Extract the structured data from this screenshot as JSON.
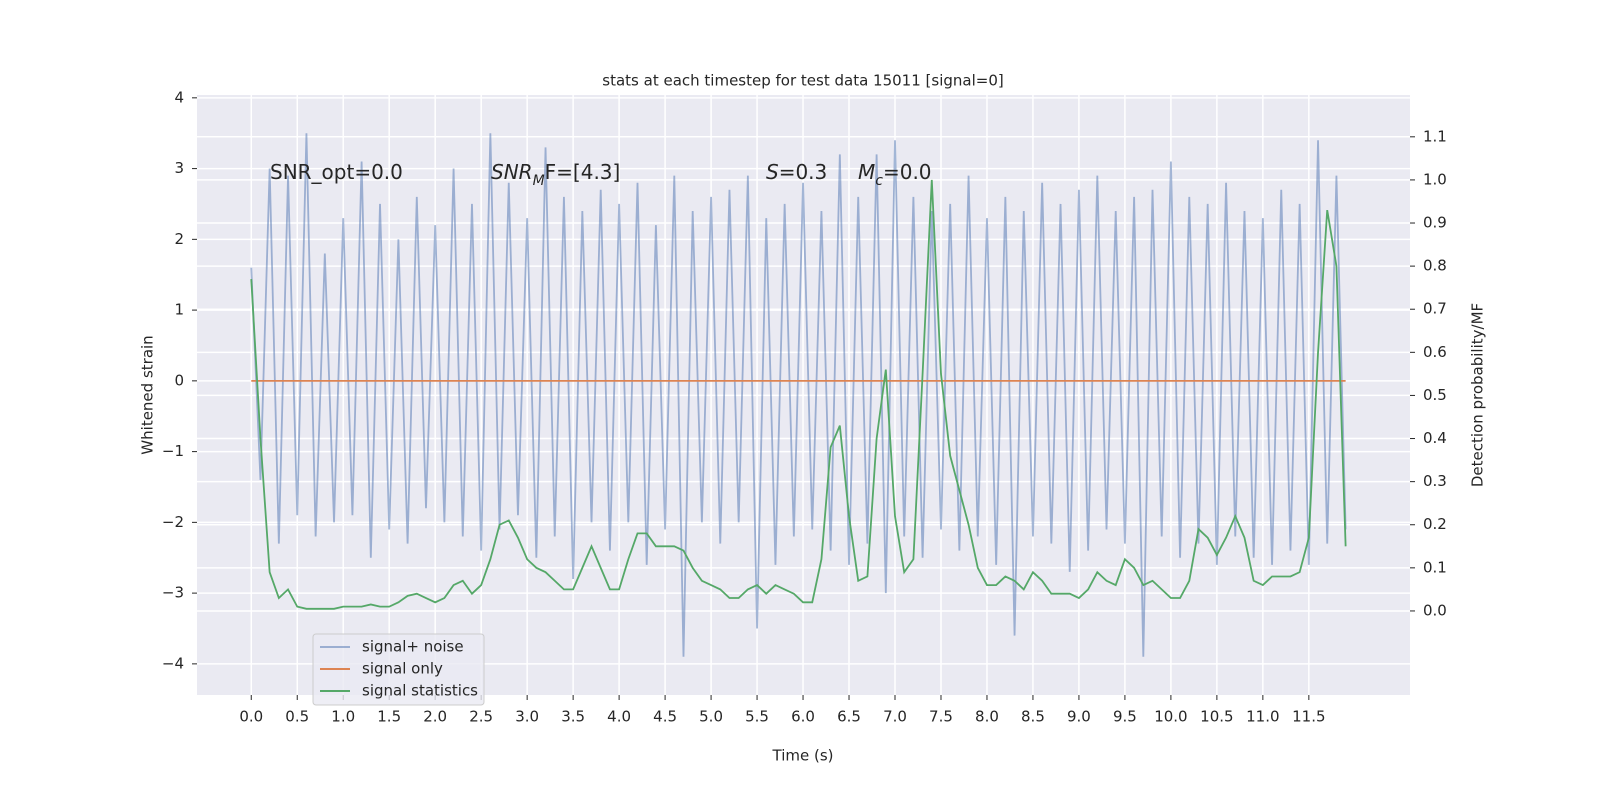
{
  "chart_data": {
    "type": "line",
    "title": "stats at each timestep for test data 15011 [signal=0]",
    "xlabel": "Time (s)",
    "ylabel": "Whitened strain",
    "y2label": "Detection probability/MF",
    "x": [
      0,
      0.1,
      0.2,
      0.3,
      0.4,
      0.5,
      0.6,
      0.7,
      0.8,
      0.9,
      1,
      1.1,
      1.2,
      1.3,
      1.4,
      1.5,
      1.6,
      1.7,
      1.8,
      1.9,
      2,
      2.1,
      2.2,
      2.3,
      2.4,
      2.5,
      2.6,
      2.7,
      2.8,
      2.9,
      3,
      3.1,
      3.2,
      3.3,
      3.4,
      3.5,
      3.6,
      3.7,
      3.8,
      3.9,
      4,
      4.1,
      4.2,
      4.3,
      4.4,
      4.5,
      4.6,
      4.7,
      4.8,
      4.9,
      5,
      5.1,
      5.2,
      5.3,
      5.4,
      5.5,
      5.6,
      5.7,
      5.8,
      5.9,
      6,
      6.1,
      6.2,
      6.3,
      6.4,
      6.5,
      6.6,
      6.7,
      6.8,
      6.9,
      7,
      7.1,
      7.2,
      7.3,
      7.4,
      7.5,
      7.6,
      7.7,
      7.8,
      7.9,
      8,
      8.1,
      8.2,
      8.3,
      8.4,
      8.5,
      8.6,
      8.7,
      8.8,
      8.9,
      9,
      9.1,
      9.2,
      9.3,
      9.4,
      9.5,
      9.6,
      9.7,
      9.8,
      9.9,
      10,
      10.1,
      10.2,
      10.3,
      10.4,
      10.5,
      10.6,
      10.7,
      10.8,
      10.9,
      11,
      11.1,
      11.2,
      11.3,
      11.4,
      11.5,
      11.6,
      11.7,
      11.8,
      11.9
    ],
    "series": [
      {
        "name": "signal+ noise",
        "color": "#4c72b0",
        "alpha": 0.5,
        "values": [
          1.6,
          -1.4,
          3.0,
          -2.3,
          2.9,
          -1.9,
          3.5,
          -2.2,
          1.8,
          -2.0,
          2.3,
          -1.9,
          3.1,
          -2.5,
          2.5,
          -2.1,
          2.0,
          -2.3,
          2.6,
          -1.8,
          2.2,
          -2.0,
          3.0,
          -2.2,
          2.5,
          -2.4,
          3.5,
          -2.1,
          2.8,
          -1.9,
          2.3,
          -2.5,
          3.3,
          -2.2,
          2.6,
          -2.8,
          2.4,
          -2.0,
          2.7,
          -2.4,
          2.5,
          -2.0,
          2.8,
          -2.6,
          2.2,
          -2.1,
          2.9,
          -3.9,
          2.4,
          -2.0,
          2.6,
          -2.3,
          2.7,
          -2.0,
          2.9,
          -3.5,
          2.3,
          -2.6,
          2.5,
          -2.2,
          2.8,
          -2.1,
          2.4,
          -2.4,
          3.2,
          -2.6,
          2.6,
          -2.3,
          3.2,
          -3.0,
          3.4,
          -2.2,
          2.6,
          -2.5,
          2.4,
          -2.1,
          2.5,
          -2.4,
          2.9,
          -2.2,
          2.3,
          -2.6,
          2.6,
          -3.6,
          2.4,
          -2.2,
          2.8,
          -2.3,
          2.5,
          -2.7,
          2.7,
          -2.4,
          2.9,
          -2.1,
          2.4,
          -2.3,
          2.6,
          -3.9,
          2.7,
          -2.2,
          3.1,
          -2.5,
          2.6,
          -2.3,
          2.5,
          -2.6,
          2.8,
          -2.2,
          2.4,
          -2.5,
          2.3,
          -2.6,
          2.7,
          -2.4,
          2.5,
          -2.6,
          3.4,
          -2.3,
          2.9,
          -2.1
        ]
      },
      {
        "name": "signal only",
        "color": "#dd8452",
        "values": [
          0,
          0,
          0,
          0,
          0,
          0,
          0,
          0,
          0,
          0,
          0,
          0,
          0,
          0,
          0,
          0,
          0,
          0,
          0,
          0,
          0,
          0,
          0,
          0,
          0,
          0,
          0,
          0,
          0,
          0,
          0,
          0,
          0,
          0,
          0,
          0,
          0,
          0,
          0,
          0,
          0,
          0,
          0,
          0,
          0,
          0,
          0,
          0,
          0,
          0,
          0,
          0,
          0,
          0,
          0,
          0,
          0,
          0,
          0,
          0,
          0,
          0,
          0,
          0,
          0,
          0,
          0,
          0,
          0,
          0,
          0,
          0,
          0,
          0,
          0,
          0,
          0,
          0,
          0,
          0,
          0,
          0,
          0,
          0,
          0,
          0,
          0,
          0,
          0,
          0,
          0,
          0,
          0,
          0,
          0,
          0,
          0,
          0,
          0,
          0,
          0,
          0,
          0,
          0,
          0,
          0,
          0,
          0,
          0,
          0,
          0,
          0,
          0,
          0,
          0,
          0,
          0,
          0,
          0,
          0
        ]
      },
      {
        "name": "signal statistics",
        "color": "#55a868",
        "axis": "y2",
        "values": [
          0.77,
          0.4,
          0.09,
          0.03,
          0.05,
          0.01,
          0.005,
          0.005,
          0.005,
          0.005,
          0.01,
          0.01,
          0.01,
          0.015,
          0.01,
          0.01,
          0.02,
          0.035,
          0.04,
          0.03,
          0.02,
          0.03,
          0.06,
          0.07,
          0.04,
          0.06,
          0.12,
          0.2,
          0.21,
          0.17,
          0.12,
          0.1,
          0.09,
          0.07,
          0.05,
          0.05,
          0.1,
          0.15,
          0.1,
          0.05,
          0.05,
          0.12,
          0.18,
          0.18,
          0.15,
          0.15,
          0.15,
          0.14,
          0.1,
          0.07,
          0.06,
          0.05,
          0.03,
          0.03,
          0.05,
          0.06,
          0.04,
          0.06,
          0.05,
          0.04,
          0.02,
          0.02,
          0.12,
          0.38,
          0.43,
          0.22,
          0.07,
          0.08,
          0.4,
          0.56,
          0.22,
          0.09,
          0.12,
          0.55,
          1.0,
          0.55,
          0.36,
          0.28,
          0.2,
          0.1,
          0.06,
          0.06,
          0.08,
          0.07,
          0.05,
          0.09,
          0.07,
          0.04,
          0.04,
          0.04,
          0.03,
          0.05,
          0.09,
          0.07,
          0.06,
          0.12,
          0.1,
          0.06,
          0.07,
          0.05,
          0.03,
          0.03,
          0.07,
          0.19,
          0.17,
          0.13,
          0.17,
          0.22,
          0.17,
          0.07,
          0.06,
          0.08,
          0.08,
          0.08,
          0.09,
          0.17,
          0.6,
          0.93,
          0.8,
          0.15
        ]
      }
    ],
    "xlim": [
      -0.59,
      12.6
    ],
    "ylim": [
      -4.44,
      4.04
    ],
    "y2lim": [
      -0.195,
      1.197
    ],
    "xticks": [
      {
        "value": 0,
        "label": "0.0"
      },
      0.5,
      {
        "value": 1,
        "label": "1.0"
      },
      1.5,
      {
        "value": 2,
        "label": "2.0"
      },
      2.5,
      {
        "value": 3,
        "label": "3.0"
      },
      3.5,
      {
        "value": 4,
        "label": "4.0"
      },
      4.5,
      {
        "value": 5,
        "label": "5.0"
      },
      5.5,
      {
        "value": 6,
        "label": "6.0"
      },
      6.5,
      {
        "value": 7,
        "label": "7.0"
      },
      7.5,
      {
        "value": 8,
        "label": "8.0"
      },
      8.5,
      {
        "value": 9,
        "label": "9.0"
      },
      9.5,
      {
        "value": 10,
        "label": "10.0"
      },
      10.5,
      {
        "value": 11,
        "label": "11.0"
      },
      11.5
    ],
    "yticks": [
      {
        "value": -4,
        "label": "−4"
      },
      {
        "value": -3,
        "label": "−3"
      },
      {
        "value": -2,
        "label": "−2"
      },
      {
        "value": -1,
        "label": "−1"
      },
      0,
      1,
      2,
      3,
      4
    ],
    "y2ticks": [
      {
        "value": 0,
        "label": "0.0"
      },
      0.1,
      0.2,
      0.3,
      0.4,
      0.5,
      0.6,
      0.7,
      0.8,
      0.9,
      {
        "value": 1,
        "label": "1.0"
      },
      1.1
    ],
    "grid": true,
    "legend": "lower left",
    "annotations": [
      [
        {
          "text": "SNR_opt=0.0"
        }
      ],
      [
        {
          "text": "SNR",
          "style": "italic"
        },
        {
          "text": "M",
          "style": "sub"
        },
        {
          "text": "F=[4.3]"
        }
      ],
      [
        {
          "text": "S",
          "style": "italic"
        },
        {
          "text": "=0.3"
        }
      ],
      [
        {
          "text": "M",
          "style": "italic"
        },
        {
          "text": "c",
          "style": "sub"
        },
        {
          "text": "=0.0"
        }
      ]
    ]
  }
}
